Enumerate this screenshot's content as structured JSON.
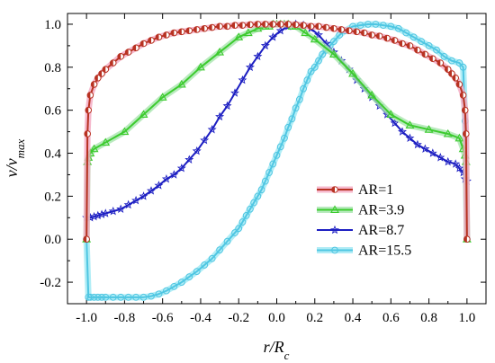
{
  "chart_data": {
    "type": "line",
    "title": "",
    "xlabel": {
      "main": "r/R",
      "sub": "c"
    },
    "ylabel": {
      "main": "v/v",
      "sub": "max"
    },
    "xlim": [
      -1.1,
      1.1
    ],
    "ylim": [
      -0.3,
      1.05
    ],
    "x_ticks": [
      "-1.0",
      "-0.8",
      "-0.6",
      "-0.4",
      "-0.2",
      "0.0",
      "0.2",
      "0.4",
      "0.6",
      "0.8",
      "1.0"
    ],
    "y_ticks": [
      "-0.2",
      "0.0",
      "0.2",
      "0.4",
      "0.6",
      "0.8",
      "1.0"
    ],
    "legend_position": "center-right",
    "series": [
      {
        "name": "AR=1",
        "color": "#b83222",
        "halo": "#f4a7c0",
        "marker": "half-circle",
        "x": [
          -1.0,
          -0.995,
          -0.99,
          -0.98,
          -0.96,
          -0.94,
          -0.92,
          -0.9,
          -0.86,
          -0.82,
          -0.78,
          -0.74,
          -0.7,
          -0.66,
          -0.62,
          -0.58,
          -0.54,
          -0.5,
          -0.46,
          -0.42,
          -0.38,
          -0.34,
          -0.3,
          -0.26,
          -0.22,
          -0.18,
          -0.14,
          -0.1,
          -0.06,
          -0.02,
          0.02,
          0.06,
          0.1,
          0.14,
          0.18,
          0.22,
          0.26,
          0.3,
          0.34,
          0.38,
          0.42,
          0.46,
          0.5,
          0.54,
          0.58,
          0.62,
          0.66,
          0.7,
          0.74,
          0.78,
          0.82,
          0.86,
          0.9,
          0.92,
          0.94,
          0.96,
          0.98,
          0.99,
          0.995,
          1.0
        ],
        "y": [
          0.0,
          0.49,
          0.6,
          0.67,
          0.72,
          0.75,
          0.77,
          0.79,
          0.82,
          0.85,
          0.87,
          0.89,
          0.91,
          0.925,
          0.94,
          0.95,
          0.96,
          0.965,
          0.97,
          0.975,
          0.98,
          0.985,
          0.99,
          0.99,
          0.995,
          0.995,
          0.998,
          1.0,
          1.0,
          1.0,
          1.0,
          1.0,
          0.998,
          0.995,
          0.99,
          0.99,
          0.985,
          0.98,
          0.975,
          0.97,
          0.965,
          0.96,
          0.95,
          0.945,
          0.935,
          0.925,
          0.91,
          0.9,
          0.88,
          0.86,
          0.84,
          0.82,
          0.79,
          0.77,
          0.75,
          0.72,
          0.67,
          0.6,
          0.49,
          0.0
        ]
      },
      {
        "name": "AR=3.9",
        "color": "#3ccb2e",
        "halo": "#a7e5ae",
        "marker": "triangle",
        "x": [
          -1.0,
          -0.995,
          -0.99,
          -0.98,
          -0.96,
          -0.9,
          -0.8,
          -0.7,
          -0.6,
          -0.5,
          -0.4,
          -0.3,
          -0.2,
          -0.15,
          -0.1,
          -0.06,
          -0.04,
          -0.02,
          0.0,
          0.02,
          0.04,
          0.06,
          0.08,
          0.1,
          0.15,
          0.2,
          0.3,
          0.4,
          0.5,
          0.6,
          0.7,
          0.8,
          0.9,
          0.96,
          0.98,
          0.99,
          0.995,
          1.0
        ],
        "y": [
          0.0,
          0.36,
          0.38,
          0.4,
          0.42,
          0.45,
          0.5,
          0.58,
          0.66,
          0.72,
          0.8,
          0.87,
          0.94,
          0.96,
          0.98,
          0.99,
          0.99,
          1.0,
          1.0,
          1.0,
          1.0,
          1.0,
          0.99,
          0.99,
          0.96,
          0.93,
          0.86,
          0.77,
          0.67,
          0.58,
          0.53,
          0.51,
          0.49,
          0.47,
          0.42,
          0.39,
          0.36,
          0.0
        ]
      },
      {
        "name": "AR=8.7",
        "color": "#1c1ec2",
        "halo": "none",
        "marker": "star",
        "x": [
          -1.0,
          -0.98,
          -0.96,
          -0.94,
          -0.92,
          -0.9,
          -0.86,
          -0.82,
          -0.78,
          -0.74,
          -0.7,
          -0.66,
          -0.62,
          -0.58,
          -0.54,
          -0.5,
          -0.46,
          -0.42,
          -0.38,
          -0.34,
          -0.3,
          -0.26,
          -0.22,
          -0.18,
          -0.14,
          -0.1,
          -0.06,
          -0.02,
          0.02,
          0.06,
          0.1,
          0.14,
          0.18,
          0.22,
          0.26,
          0.3,
          0.34,
          0.38,
          0.42,
          0.46,
          0.5,
          0.54,
          0.58,
          0.62,
          0.66,
          0.7,
          0.74,
          0.78,
          0.82,
          0.86,
          0.9,
          0.94,
          0.96,
          0.98,
          0.99,
          1.0
        ],
        "y": [
          0.1,
          0.1,
          0.105,
          0.11,
          0.115,
          0.12,
          0.13,
          0.14,
          0.16,
          0.18,
          0.2,
          0.225,
          0.25,
          0.28,
          0.3,
          0.33,
          0.37,
          0.41,
          0.46,
          0.51,
          0.57,
          0.62,
          0.68,
          0.74,
          0.8,
          0.85,
          0.9,
          0.94,
          0.97,
          0.99,
          1.0,
          0.995,
          0.98,
          0.95,
          0.91,
          0.87,
          0.83,
          0.79,
          0.74,
          0.7,
          0.66,
          0.62,
          0.58,
          0.54,
          0.5,
          0.47,
          0.44,
          0.42,
          0.4,
          0.38,
          0.36,
          0.35,
          0.33,
          0.31,
          0.28,
          0.27
        ]
      },
      {
        "name": "AR=15.5",
        "color": "#4fc6e2",
        "halo": "#9ee8f4",
        "marker": "circle",
        "x": [
          -1.0,
          -0.99,
          -0.98,
          -0.96,
          -0.94,
          -0.92,
          -0.9,
          -0.86,
          -0.82,
          -0.78,
          -0.74,
          -0.7,
          -0.66,
          -0.62,
          -0.58,
          -0.54,
          -0.5,
          -0.46,
          -0.42,
          -0.38,
          -0.34,
          -0.3,
          -0.26,
          -0.22,
          -0.2,
          -0.18,
          -0.16,
          -0.14,
          -0.12,
          -0.1,
          -0.08,
          -0.06,
          -0.04,
          -0.02,
          0.0,
          0.02,
          0.04,
          0.06,
          0.08,
          0.1,
          0.12,
          0.14,
          0.16,
          0.18,
          0.2,
          0.22,
          0.24,
          0.26,
          0.28,
          0.3,
          0.33,
          0.36,
          0.4,
          0.44,
          0.48,
          0.52,
          0.56,
          0.6,
          0.64,
          0.68,
          0.72,
          0.76,
          0.8,
          0.84,
          0.88,
          0.92,
          0.96,
          0.98,
          0.99,
          1.0
        ],
        "y": [
          0.0,
          -0.27,
          -0.27,
          -0.27,
          -0.27,
          -0.27,
          -0.27,
          -0.27,
          -0.27,
          -0.27,
          -0.27,
          -0.27,
          -0.265,
          -0.255,
          -0.24,
          -0.22,
          -0.2,
          -0.175,
          -0.15,
          -0.12,
          -0.09,
          -0.05,
          -0.01,
          0.03,
          0.05,
          0.08,
          0.11,
          0.14,
          0.17,
          0.2,
          0.23,
          0.27,
          0.31,
          0.35,
          0.39,
          0.43,
          0.47,
          0.52,
          0.56,
          0.61,
          0.65,
          0.7,
          0.74,
          0.78,
          0.8,
          0.83,
          0.86,
          0.88,
          0.9,
          0.92,
          0.95,
          0.97,
          0.99,
          0.995,
          1.0,
          1.0,
          0.995,
          0.99,
          0.98,
          0.96,
          0.94,
          0.92,
          0.9,
          0.88,
          0.85,
          0.83,
          0.82,
          0.8,
          0.55,
          0.0
        ]
      }
    ]
  }
}
